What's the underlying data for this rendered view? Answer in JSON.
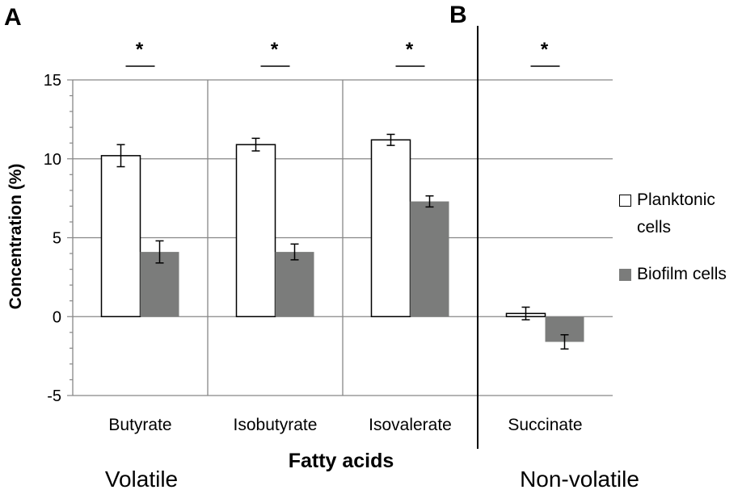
{
  "chart_data": {
    "type": "bar",
    "categories": [
      "Butyrate",
      "Isobutyrate",
      "Isovalerate",
      "Succinate"
    ],
    "category_groups": [
      {
        "panel": "A",
        "label": "Volatile",
        "category_indices": [
          0,
          1,
          2
        ]
      },
      {
        "panel": "B",
        "label": "Non-volatile",
        "category_indices": [
          3
        ]
      }
    ],
    "series": [
      {
        "name": "Planktonic cells",
        "color": "#ffffff",
        "edgecolor": "#000000",
        "values": [
          10.2,
          10.9,
          11.2,
          0.2
        ],
        "errors": [
          0.7,
          0.4,
          0.35,
          0.4
        ]
      },
      {
        "name": "Biofilm cells",
        "color": "#7b7c7b",
        "edgecolor": "none",
        "values": [
          4.1,
          4.1,
          7.3,
          -1.6
        ],
        "errors": [
          0.7,
          0.5,
          0.35,
          0.45
        ]
      }
    ],
    "significance": [
      "*",
      "*",
      "*",
      "*"
    ],
    "xlabel": "Fatty acids",
    "ylabel": "Concentration (%)",
    "ylim": [
      -5,
      15
    ],
    "yticks": [
      15,
      10,
      5,
      0,
      -5
    ],
    "minor_tick_step": 1,
    "grid": true,
    "legend_position": "right"
  }
}
